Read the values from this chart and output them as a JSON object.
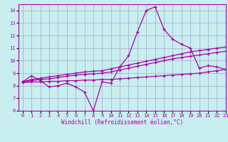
{
  "xlabel": "Windchill (Refroidissement éolien,°C)",
  "xlim": [
    -0.5,
    23
  ],
  "ylim": [
    6,
    14.5
  ],
  "yticks": [
    6,
    7,
    8,
    9,
    10,
    11,
    12,
    13,
    14
  ],
  "xticks": [
    0,
    1,
    2,
    3,
    4,
    5,
    6,
    7,
    8,
    9,
    10,
    11,
    12,
    13,
    14,
    15,
    16,
    17,
    18,
    19,
    20,
    21,
    22,
    23
  ],
  "bg_color": "#c8eef0",
  "line_color": "#aa00aa",
  "grid_color": "#9999bb",
  "lines": [
    {
      "x": [
        0,
        1,
        2,
        3,
        4,
        5,
        6,
        7,
        8,
        9,
        10,
        11,
        12,
        13,
        14,
        15,
        16,
        17,
        18,
        19,
        20,
        21,
        22,
        23
      ],
      "y": [
        8.3,
        8.8,
        8.4,
        7.9,
        8.0,
        8.2,
        7.9,
        7.5,
        6.0,
        8.3,
        8.2,
        9.5,
        10.4,
        12.3,
        14.0,
        14.3,
        12.5,
        11.7,
        11.3,
        11.0,
        9.4,
        9.6,
        9.5,
        9.3
      ]
    },
    {
      "x": [
        0,
        1,
        2,
        3,
        4,
        5,
        6,
        7,
        8,
        9,
        10,
        11,
        12,
        13,
        14,
        15,
        16,
        17,
        18,
        19,
        20,
        21,
        22,
        23
      ],
      "y": [
        8.3,
        8.5,
        8.6,
        8.7,
        8.8,
        8.9,
        9.0,
        9.1,
        9.15,
        9.2,
        9.35,
        9.5,
        9.65,
        9.8,
        9.95,
        10.1,
        10.25,
        10.4,
        10.55,
        10.7,
        10.8,
        10.9,
        11.0,
        11.1
      ]
    },
    {
      "x": [
        0,
        1,
        2,
        3,
        4,
        5,
        6,
        7,
        8,
        9,
        10,
        11,
        12,
        13,
        14,
        15,
        16,
        17,
        18,
        19,
        20,
        21,
        22,
        23
      ],
      "y": [
        8.3,
        8.4,
        8.5,
        8.55,
        8.65,
        8.75,
        8.85,
        8.9,
        8.95,
        9.0,
        9.1,
        9.25,
        9.4,
        9.55,
        9.7,
        9.85,
        10.0,
        10.15,
        10.25,
        10.35,
        10.45,
        10.55,
        10.65,
        10.75
      ]
    },
    {
      "x": [
        0,
        1,
        2,
        3,
        4,
        5,
        6,
        7,
        8,
        9,
        10,
        11,
        12,
        13,
        14,
        15,
        16,
        17,
        18,
        19,
        20,
        21,
        22,
        23
      ],
      "y": [
        8.25,
        8.3,
        8.3,
        8.35,
        8.35,
        8.4,
        8.4,
        8.45,
        8.45,
        8.5,
        8.5,
        8.55,
        8.6,
        8.65,
        8.7,
        8.75,
        8.8,
        8.85,
        8.9,
        8.95,
        9.0,
        9.1,
        9.2,
        9.3
      ]
    }
  ]
}
